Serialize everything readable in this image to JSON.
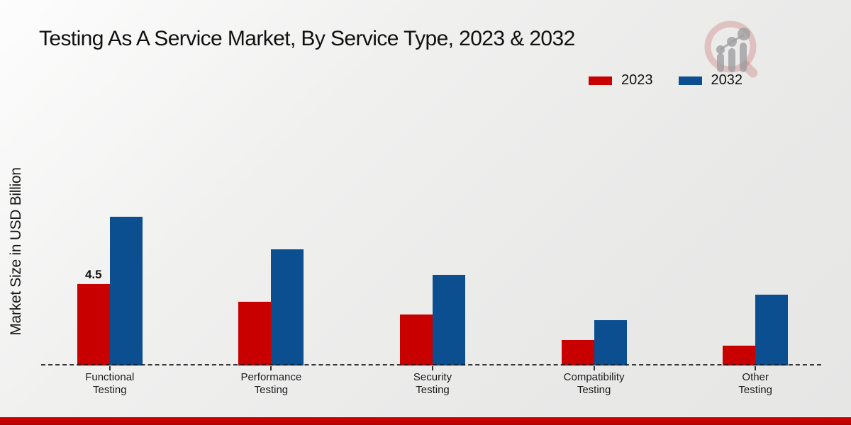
{
  "page": {
    "title": "Testing As A Service Market, By Service Type, 2023 & 2032",
    "footer_accent_color": "#c00000",
    "background_color": "#ededec"
  },
  "logo": {
    "name": "market-research-magnifier-logo"
  },
  "chart_data": {
    "type": "bar",
    "title": "Testing As A Service Market, By Service Type, 2023 & 2032",
    "xlabel": "",
    "ylabel": "Market Size in USD Billion",
    "categories": [
      "Functional Testing",
      "Performance Testing",
      "Security Testing",
      "Compatibility Testing",
      "Other Testing"
    ],
    "series": [
      {
        "name": "2023",
        "color": "#c80000",
        "values": [
          4.5,
          3.5,
          2.8,
          1.4,
          1.1
        ]
      },
      {
        "name": "2032",
        "color": "#0b4f91",
        "values": [
          8.2,
          6.4,
          5.0,
          2.5,
          3.9
        ]
      }
    ],
    "annotations": [
      {
        "series": "2023",
        "category_index": 0,
        "text": "4.5"
      }
    ],
    "ylim": [
      0,
      9
    ],
    "grid": false,
    "axis_style": "dashed-baseline-only",
    "legend_position": "top-right"
  }
}
